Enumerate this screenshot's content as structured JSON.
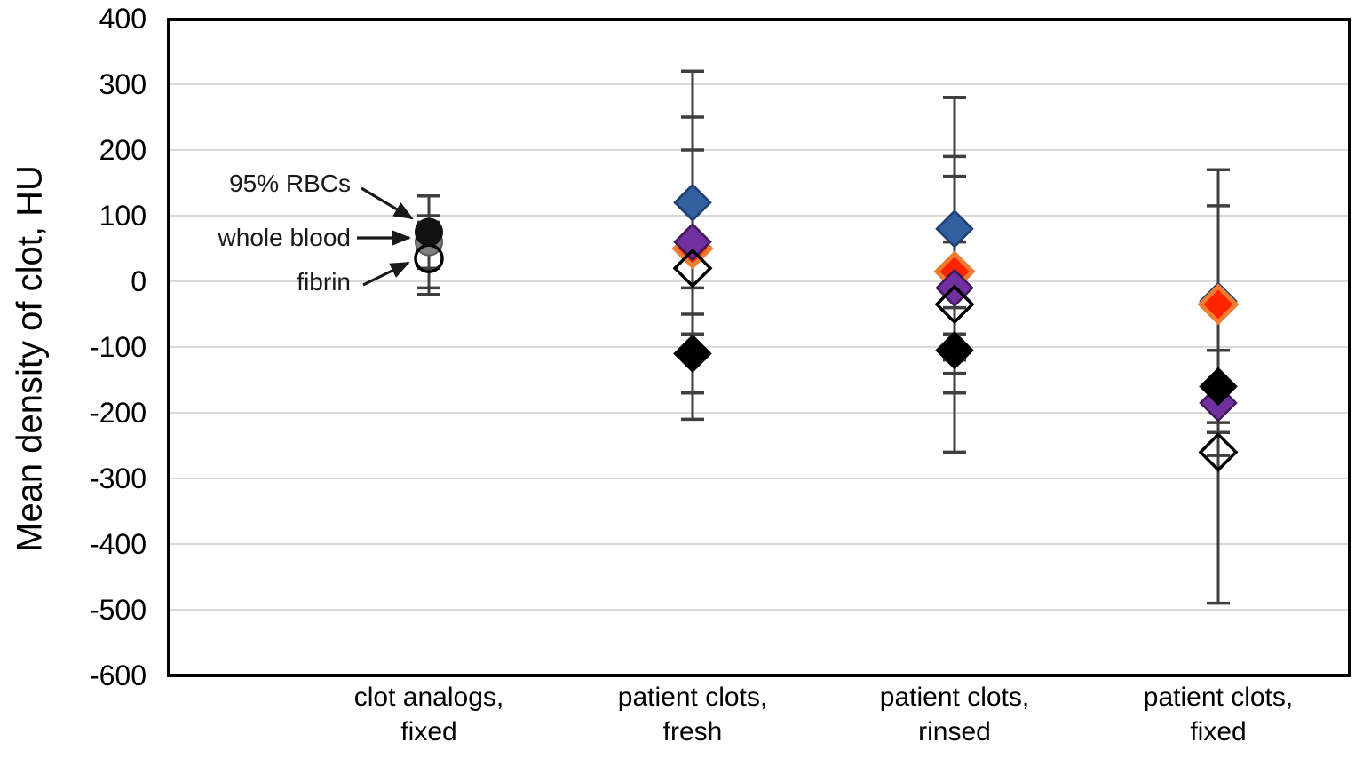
{
  "figure": {
    "background": "#FFFFFF"
  },
  "annotations": [
    {
      "label": "95% RBCs",
      "points_to": "black filled circle marker"
    },
    {
      "label": "whole blood",
      "points_to": "gray filled circle marker"
    },
    {
      "label": "fibrin",
      "points_to": "open circle marker"
    }
  ],
  "chart_data": {
    "type": "scatter",
    "title": "",
    "xlabel": "",
    "ylabel": "Mean density of clot, HU",
    "ylim": [
      -600,
      400
    ],
    "ytick_interval": 100,
    "yticks": [
      "400",
      "300",
      "200",
      "100",
      "0",
      "-100",
      "-200",
      "-300",
      "-400",
      "-500",
      "-600"
    ],
    "grid": true,
    "legend_position": "none",
    "units": "HU",
    "categories": [
      [
        "clot analogs,",
        "fixed"
      ],
      [
        "patient clots,",
        "fresh"
      ],
      [
        "patient clots,",
        "rinsed"
      ],
      [
        "patient clots,",
        "fixed"
      ]
    ],
    "groups": [
      {
        "category": "clot analogs, fixed",
        "points": [
          {
            "series": "whole blood",
            "marker": "gray-circle",
            "mean": 60,
            "err_lo": -10,
            "err_hi": 100
          },
          {
            "series": "fibrin",
            "marker": "open-circle",
            "mean": 35,
            "err_lo": -20,
            "err_hi": 90
          },
          {
            "series": "95% RBCs",
            "marker": "black-circle",
            "mean": 75,
            "err_lo": 20,
            "err_hi": 130
          }
        ]
      },
      {
        "category": "patient clots, fresh",
        "points": [
          {
            "series": "blue-diamond",
            "marker": "blue-diamond",
            "mean": 120,
            "err_lo": -80,
            "err_hi": 320
          },
          {
            "series": "orange-diamond",
            "marker": "orange-diamond",
            "mean": 50,
            "err_lo": -10,
            "err_hi": 110
          },
          {
            "series": "purple-diamond",
            "marker": "purple-diamond",
            "mean": 60,
            "err_lo": -80,
            "err_hi": 200
          },
          {
            "series": "open-diamond",
            "marker": "open-diamond",
            "mean": 20,
            "err_lo": -210,
            "err_hi": 250
          },
          {
            "series": "black-diamond",
            "marker": "black-diamond",
            "mean": -110,
            "err_lo": -170,
            "err_hi": -50
          }
        ]
      },
      {
        "category": "patient clots, rinsed",
        "points": [
          {
            "series": "blue-diamond",
            "marker": "blue-diamond",
            "mean": 80,
            "err_lo": -120,
            "err_hi": 280
          },
          {
            "series": "orange-diamond",
            "marker": "orange-diamond",
            "mean": 15,
            "err_lo": -140,
            "err_hi": 160
          },
          {
            "series": "purple-diamond",
            "marker": "purple-diamond",
            "mean": -10,
            "err_lo": -80,
            "err_hi": 60
          },
          {
            "series": "open-diamond",
            "marker": "open-diamond",
            "mean": -35,
            "err_lo": -260,
            "err_hi": 190
          },
          {
            "series": "black-diamond",
            "marker": "black-diamond",
            "mean": -105,
            "err_lo": -170,
            "err_hi": -40
          }
        ]
      },
      {
        "category": "patient clots, fixed",
        "points": [
          {
            "series": "blue-diamond",
            "marker": "blue-diamond",
            "mean": -30,
            "err_lo": -230,
            "err_hi": 170
          },
          {
            "series": "orange-diamond",
            "marker": "orange-diamond",
            "mean": -35,
            "err_lo": -190,
            "err_hi": 115
          },
          {
            "series": "purple-diamond",
            "marker": "purple-diamond",
            "mean": -185,
            "err_lo": -265,
            "err_hi": -105
          },
          {
            "series": "open-diamond",
            "marker": "open-diamond",
            "mean": -260,
            "err_lo": -490,
            "err_hi": -30
          },
          {
            "series": "black-diamond",
            "marker": "black-diamond",
            "mean": -160,
            "err_lo": -215,
            "err_hi": -105
          }
        ]
      }
    ],
    "marker_styles": {
      "black-circle": {
        "shape": "circle",
        "fill": "#111111",
        "stroke": "#111111"
      },
      "gray-circle": {
        "shape": "circle",
        "fill": "#7F7F7F",
        "stroke": "#595959"
      },
      "open-circle": {
        "shape": "circle",
        "fill": "none",
        "stroke": "#000000"
      },
      "blue-diamond": {
        "shape": "diamond",
        "fill": "#30609E",
        "stroke": "#1E3F6F"
      },
      "orange-diamond": {
        "shape": "diamond",
        "fill": "#FF2400",
        "stroke": "#ED7D31"
      },
      "purple-diamond": {
        "shape": "diamond",
        "fill": "#7030A0",
        "stroke": "#3F1A57"
      },
      "open-diamond": {
        "shape": "diamond",
        "fill": "none",
        "stroke": "#000000"
      },
      "black-diamond": {
        "shape": "diamond",
        "fill": "#000000",
        "stroke": "#000000"
      }
    },
    "colors": {
      "gridline": "#D9D9D9",
      "axis_border": "#000000",
      "error_bar": "#3F3F3F",
      "annotation_text": "#1A1A1A"
    }
  }
}
